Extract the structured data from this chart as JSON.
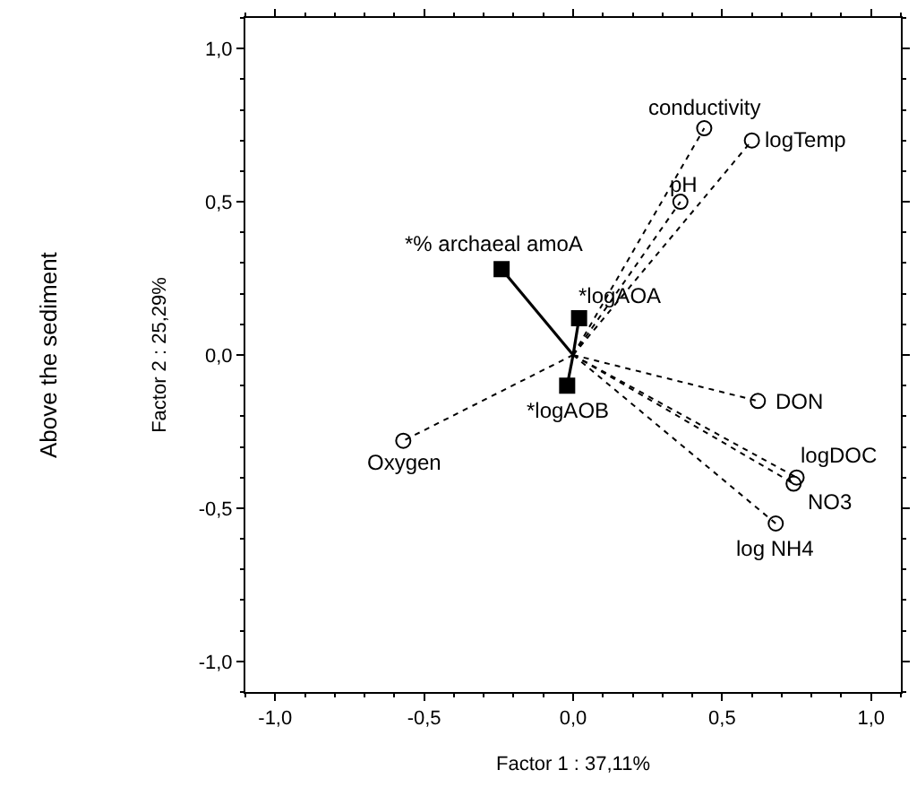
{
  "chart_data": {
    "type": "scatter",
    "xlabel": "Factor 1 : 37,11%",
    "ylabel": "Factor 2 : 25,29%",
    "xlim": [
      -1.1,
      1.1
    ],
    "ylim": [
      -1.1,
      1.1
    ],
    "xticks": [
      {
        "value": -1,
        "label": "-1,0"
      },
      {
        "value": -0.5,
        "label": "-0,5"
      },
      {
        "value": 0,
        "label": "0,0"
      },
      {
        "value": 0.5,
        "label": "0,5"
      },
      {
        "value": 1,
        "label": "1,0"
      }
    ],
    "yticks": [
      {
        "value": -1,
        "label": "-1,0"
      },
      {
        "value": -0.5,
        "label": "-0,5"
      },
      {
        "value": 0,
        "label": "0,0"
      },
      {
        "value": 0.5,
        "label": "0,5"
      },
      {
        "value": 1,
        "label": "1,0"
      }
    ],
    "grid": false,
    "series": [
      {
        "color": "#000000",
        "marker": "circle",
        "line_style": "dotted",
        "x": [
          0.44,
          0.6,
          0.36,
          0.62,
          -0.57,
          0.75,
          0.74,
          0.68
        ],
        "values": [
          0.74,
          0.7,
          0.5,
          -0.15,
          -0.28,
          -0.4,
          -0.42,
          -0.55
        ]
      },
      {
        "color": "#000000",
        "marker": "square",
        "line_style": "solid",
        "x": [
          -0.24,
          0.02,
          -0.02
        ],
        "values": [
          0.28,
          0.12,
          -0.1
        ]
      }
    ],
    "annotations": [
      {
        "text": "conductivity",
        "x": 0.44,
        "y": 0.74
      },
      {
        "text": "logTemp",
        "x": 0.6,
        "y": 0.7
      },
      {
        "text": "pH",
        "x": 0.36,
        "y": 0.5
      },
      {
        "text": "DON",
        "x": 0.62,
        "y": -0.15
      },
      {
        "text": "Oxygen",
        "x": -0.57,
        "y": -0.28
      },
      {
        "text": "logDOC",
        "x": 0.75,
        "y": -0.4
      },
      {
        "text": "NO3",
        "x": 0.74,
        "y": -0.42
      },
      {
        "text": "log NH4",
        "x": 0.68,
        "y": -0.55
      },
      {
        "text": "*% archaeal amoA",
        "x": -0.24,
        "y": 0.28
      },
      {
        "text": "*logAOA",
        "x": 0.02,
        "y": 0.12
      },
      {
        "text": "*logAOB",
        "x": -0.02,
        "y": -0.1
      },
      "Above the sediment"
    ]
  }
}
